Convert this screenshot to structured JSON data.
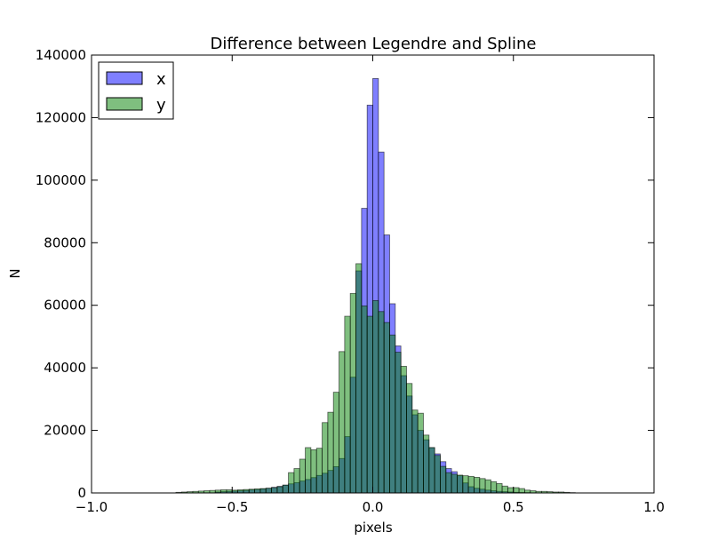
{
  "chart_data": {
    "type": "bar",
    "subtype": "overlaid-histogram",
    "title": "Difference between Legendre and Spline",
    "xlabel": "pixels",
    "ylabel": "N",
    "xlim": [
      -1.0,
      1.0
    ],
    "ylim": [
      0,
      140000
    ],
    "xticks": [
      -1.0,
      -0.5,
      0.0,
      0.5,
      1.0
    ],
    "xtick_labels": [
      "−1.0",
      "−0.5",
      "0.0",
      "0.5",
      "1.0"
    ],
    "yticks": [
      0,
      20000,
      40000,
      60000,
      80000,
      100000,
      120000,
      140000
    ],
    "ytick_labels": [
      "0",
      "20000",
      "40000",
      "60000",
      "80000",
      "100000",
      "120000",
      "140000"
    ],
    "grid": false,
    "legend_position": "top-left",
    "bin_width": 0.02,
    "series": [
      {
        "name": "x",
        "color": "#0000ff",
        "opacity": 0.5,
        "bins": [
          [
            -0.56,
            300
          ],
          [
            -0.54,
            400
          ],
          [
            -0.52,
            500
          ],
          [
            -0.5,
            600
          ],
          [
            -0.48,
            700
          ],
          [
            -0.46,
            800
          ],
          [
            -0.44,
            1000
          ],
          [
            -0.42,
            1100
          ],
          [
            -0.4,
            1300
          ],
          [
            -0.38,
            1500
          ],
          [
            -0.36,
            1800
          ],
          [
            -0.34,
            2100
          ],
          [
            -0.32,
            2500
          ],
          [
            -0.3,
            2900
          ],
          [
            -0.28,
            3300
          ],
          [
            -0.26,
            3800
          ],
          [
            -0.24,
            4300
          ],
          [
            -0.22,
            4900
          ],
          [
            -0.2,
            5600
          ],
          [
            -0.18,
            6300
          ],
          [
            -0.16,
            7200
          ],
          [
            -0.14,
            8400
          ],
          [
            -0.12,
            11000
          ],
          [
            -0.1,
            18000
          ],
          [
            -0.08,
            37000
          ],
          [
            -0.06,
            71000
          ],
          [
            -0.04,
            91000
          ],
          [
            -0.02,
            124000
          ],
          [
            0.0,
            132500
          ],
          [
            0.02,
            109000
          ],
          [
            0.04,
            82500
          ],
          [
            0.06,
            60500
          ],
          [
            0.08,
            47000
          ],
          [
            0.1,
            37500
          ],
          [
            0.12,
            31000
          ],
          [
            0.14,
            25000
          ],
          [
            0.16,
            20000
          ],
          [
            0.18,
            17000
          ],
          [
            0.2,
            14500
          ],
          [
            0.22,
            12500
          ],
          [
            0.24,
            10000
          ],
          [
            0.26,
            7800
          ],
          [
            0.28,
            6800
          ],
          [
            0.3,
            5500
          ],
          [
            0.32,
            3200
          ],
          [
            0.34,
            2000
          ],
          [
            0.36,
            1500
          ],
          [
            0.38,
            1200
          ],
          [
            0.4,
            900
          ],
          [
            0.42,
            700
          ],
          [
            0.44,
            500
          ],
          [
            0.46,
            400
          ],
          [
            0.48,
            300
          ],
          [
            0.5,
            200
          ],
          [
            0.52,
            150
          ],
          [
            0.54,
            100
          ]
        ]
      },
      {
        "name": "y",
        "color": "#008000",
        "opacity": 0.5,
        "bins": [
          [
            -0.7,
            200
          ],
          [
            -0.68,
            300
          ],
          [
            -0.66,
            400
          ],
          [
            -0.64,
            500
          ],
          [
            -0.62,
            600
          ],
          [
            -0.6,
            700
          ],
          [
            -0.58,
            800
          ],
          [
            -0.56,
            900
          ],
          [
            -0.54,
            1000
          ],
          [
            -0.52,
            1000
          ],
          [
            -0.5,
            900
          ],
          [
            -0.48,
            1000
          ],
          [
            -0.46,
            1100
          ],
          [
            -0.44,
            1200
          ],
          [
            -0.42,
            1300
          ],
          [
            -0.4,
            1400
          ],
          [
            -0.38,
            1500
          ],
          [
            -0.36,
            1700
          ],
          [
            -0.34,
            2000
          ],
          [
            -0.32,
            2500
          ],
          [
            -0.3,
            6500
          ],
          [
            -0.28,
            7800
          ],
          [
            -0.26,
            10800
          ],
          [
            -0.24,
            14500
          ],
          [
            -0.22,
            13800
          ],
          [
            -0.2,
            14300
          ],
          [
            -0.18,
            22500
          ],
          [
            -0.16,
            25800
          ],
          [
            -0.14,
            32200
          ],
          [
            -0.12,
            45200
          ],
          [
            -0.1,
            56500
          ],
          [
            -0.08,
            63800
          ],
          [
            -0.06,
            73300
          ],
          [
            -0.04,
            59800
          ],
          [
            -0.02,
            56500
          ],
          [
            0.0,
            61500
          ],
          [
            0.02,
            58000
          ],
          [
            0.04,
            54500
          ],
          [
            0.06,
            50500
          ],
          [
            0.08,
            45000
          ],
          [
            0.1,
            40500
          ],
          [
            0.12,
            35000
          ],
          [
            0.14,
            26500
          ],
          [
            0.16,
            25500
          ],
          [
            0.18,
            18500
          ],
          [
            0.2,
            14500
          ],
          [
            0.22,
            12000
          ],
          [
            0.24,
            8500
          ],
          [
            0.26,
            6500
          ],
          [
            0.28,
            6000
          ],
          [
            0.3,
            5700
          ],
          [
            0.32,
            5500
          ],
          [
            0.34,
            5300
          ],
          [
            0.36,
            5000
          ],
          [
            0.38,
            4600
          ],
          [
            0.4,
            4200
          ],
          [
            0.42,
            3600
          ],
          [
            0.44,
            3000
          ],
          [
            0.46,
            2200
          ],
          [
            0.48,
            1700
          ],
          [
            0.5,
            1700
          ],
          [
            0.52,
            1400
          ],
          [
            0.54,
            900
          ],
          [
            0.56,
            700
          ],
          [
            0.58,
            500
          ],
          [
            0.6,
            500
          ],
          [
            0.62,
            400
          ],
          [
            0.64,
            300
          ],
          [
            0.66,
            300
          ],
          [
            0.68,
            200
          ],
          [
            0.7,
            100
          ]
        ]
      }
    ]
  }
}
